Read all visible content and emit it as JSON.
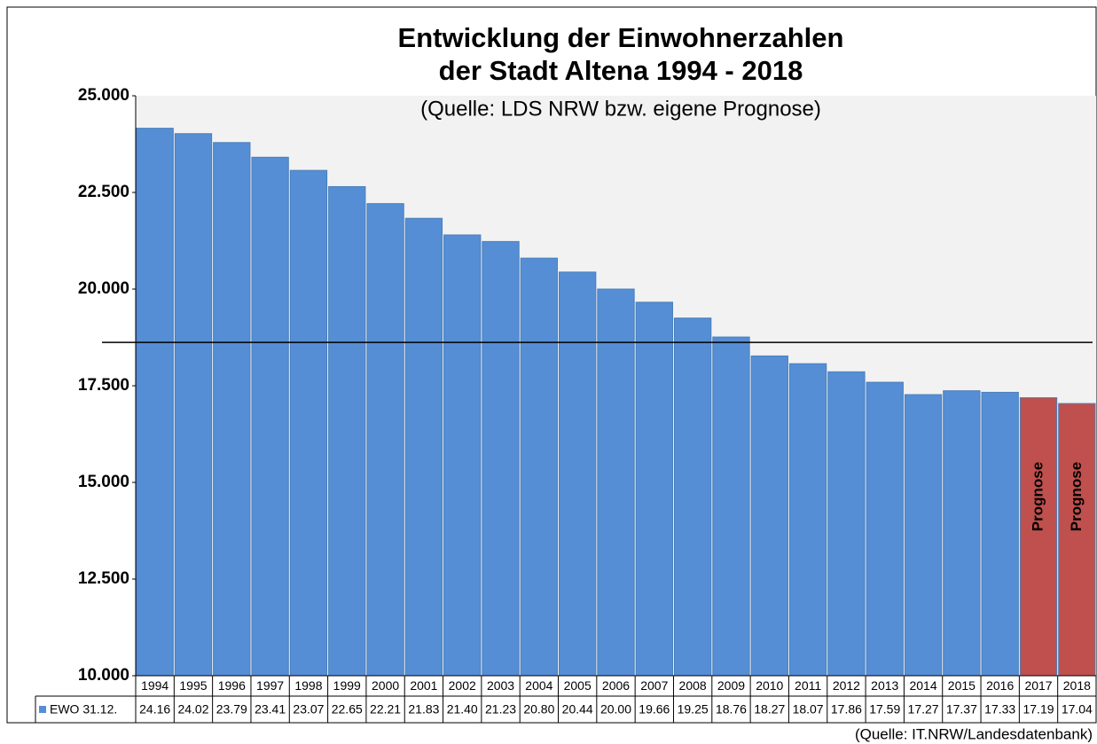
{
  "chart_data": {
    "type": "bar",
    "title": "Entwicklung der Einwohnerzahlen",
    "title_line2": "der Stadt Altena 1994 - 2018",
    "subtitle": "(Quelle: LDS NRW bzw. eigene Prognose)",
    "source": "(Quelle: IT.NRW/Landesdatenbank)",
    "categories": [
      "1994",
      "1995",
      "1996",
      "1997",
      "1998",
      "1999",
      "2000",
      "2001",
      "2002",
      "2003",
      "2004",
      "2005",
      "2006",
      "2007",
      "2008",
      "2009",
      "2010",
      "2011",
      "2012",
      "2013",
      "2014",
      "2015",
      "2016",
      "2017",
      "2018"
    ],
    "series": [
      {
        "name": "EWO 31.12.",
        "color": "#558ed5",
        "values": [
          24160,
          24020,
          23790,
          23410,
          23070,
          22650,
          22210,
          21830,
          21400,
          21230,
          20800,
          20440,
          20000,
          19660,
          19250,
          18760,
          18270,
          18070,
          17860,
          17590,
          17270,
          17370,
          17330,
          17190,
          17040
        ],
        "value_labels": [
          "24.16",
          "24.02",
          "23.79",
          "23.41",
          "23.07",
          "22.65",
          "22.21",
          "21.83",
          "21.40",
          "21.23",
          "20.80",
          "20.44",
          "20.00",
          "19.66",
          "19.25",
          "18.76",
          "18.27",
          "18.07",
          "17.86",
          "17.59",
          "17.27",
          "17.37",
          "17.33",
          "17.19",
          "17.04"
        ],
        "point_colors": [
          "#558ed5",
          "#558ed5",
          "#558ed5",
          "#558ed5",
          "#558ed5",
          "#558ed5",
          "#558ed5",
          "#558ed5",
          "#558ed5",
          "#558ed5",
          "#558ed5",
          "#558ed5",
          "#558ed5",
          "#558ed5",
          "#558ed5",
          "#558ed5",
          "#558ed5",
          "#558ed5",
          "#558ed5",
          "#558ed5",
          "#558ed5",
          "#558ed5",
          "#558ed5",
          "#c0504d",
          "#c0504d"
        ],
        "bar_labels": [
          null,
          null,
          null,
          null,
          null,
          null,
          null,
          null,
          null,
          null,
          null,
          null,
          null,
          null,
          null,
          null,
          null,
          null,
          null,
          null,
          null,
          null,
          null,
          "Prognose",
          "Prognose"
        ]
      }
    ],
    "reference_line": 18620,
    "ylim": [
      10000,
      25000
    ],
    "yticks": [
      {
        "value": 10000,
        "label": "10.000"
      },
      {
        "value": 12500,
        "label": "12.500"
      },
      {
        "value": 15000,
        "label": "15.000"
      },
      {
        "value": 17500,
        "label": "17.500"
      },
      {
        "value": 20000,
        "label": "20.000"
      },
      {
        "value": 22500,
        "label": "22.500"
      },
      {
        "value": 25000,
        "label": "25.000"
      }
    ],
    "plot_background": "#f2f2f2"
  }
}
